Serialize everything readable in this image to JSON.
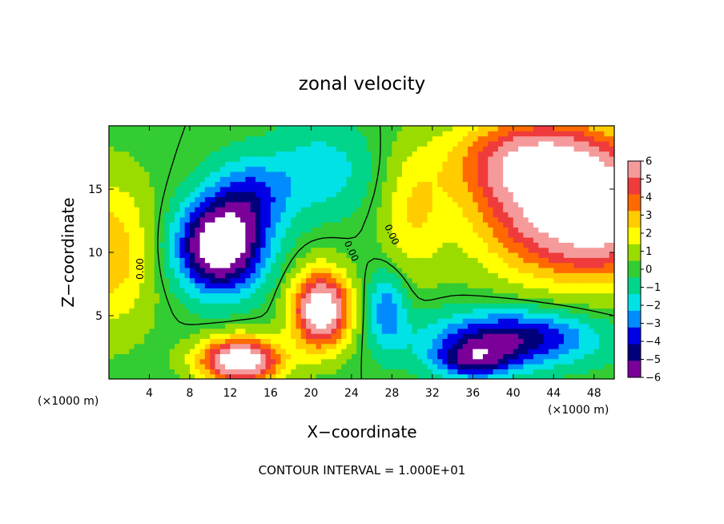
{
  "chart_data": {
    "type": "heatmap",
    "title": "zonal velocity",
    "xlabel": "X−coordinate",
    "ylabel": "Z−coordinate",
    "x_unit_label": "(×1000 m)",
    "y_unit_label": "(×1000 m)",
    "xlim": [
      0,
      50
    ],
    "ylim": [
      0,
      20
    ],
    "x_ticks": [
      4,
      8,
      12,
      16,
      20,
      24,
      28,
      32,
      36,
      40,
      44,
      48
    ],
    "y_ticks": [
      5,
      10,
      15
    ],
    "colorbar": {
      "min": -6,
      "max": 6,
      "ticks": [
        "6",
        "5",
        "4",
        "3",
        "2",
        "1",
        "0",
        "−1",
        "−2",
        "−3",
        "−4",
        "−5",
        "−6"
      ],
      "colors": [
        "#f59a9a",
        "#ef3b3b",
        "#ff6a00",
        "#ffcc00",
        "#ffff00",
        "#9bdc00",
        "#33cc33",
        "#00d58a",
        "#00e2e6",
        "#008cff",
        "#0000e6",
        "#00007a",
        "#7a0099"
      ]
    },
    "contour_labels": [
      "0.00",
      "0.00",
      "0.00"
    ],
    "footnote": "CONTOUR INTERVAL = 1.000E+01",
    "regions": [
      {
        "sign": "positive",
        "cx": 47.5,
        "cz": 13,
        "rx": 10,
        "rz": 5,
        "amp": 8
      },
      {
        "sign": "positive",
        "cx": 42,
        "cz": 17.5,
        "rx": 8,
        "rz": 3.5,
        "amp": 5
      },
      {
        "sign": "positive",
        "cx": 0,
        "cz": 10,
        "rx": 4.5,
        "rz": 6,
        "amp": 3
      },
      {
        "sign": "positive",
        "cx": 21,
        "cz": 5.5,
        "rx": 2.8,
        "rz": 3,
        "amp": 8
      },
      {
        "sign": "positive",
        "cx": 13,
        "cz": 1.5,
        "rx": 4,
        "rz": 1.8,
        "amp": 8
      },
      {
        "sign": "positive",
        "cx": 30,
        "cz": 13,
        "rx": 3,
        "rz": 5,
        "amp": 2
      },
      {
        "sign": "negative",
        "cx": 11,
        "cz": 10.5,
        "rx": 4.2,
        "rz": 3.5,
        "amp": -8
      },
      {
        "sign": "negative",
        "cx": 14,
        "cz": 14.5,
        "rx": 4,
        "rz": 3,
        "amp": -3
      },
      {
        "sign": "negative",
        "cx": 21,
        "cz": 16.5,
        "rx": 5,
        "rz": 3.5,
        "amp": -2
      },
      {
        "sign": "negative",
        "cx": 40,
        "cz": 3.3,
        "rx": 8,
        "rz": 2.2,
        "amp": -5
      },
      {
        "sign": "negative",
        "cx": 27.5,
        "cz": 5.5,
        "rx": 2,
        "rz": 3,
        "amp": -3
      },
      {
        "sign": "negative",
        "cx": 36,
        "cz": 1.5,
        "rx": 4,
        "rz": 1.5,
        "amp": -4
      }
    ]
  }
}
